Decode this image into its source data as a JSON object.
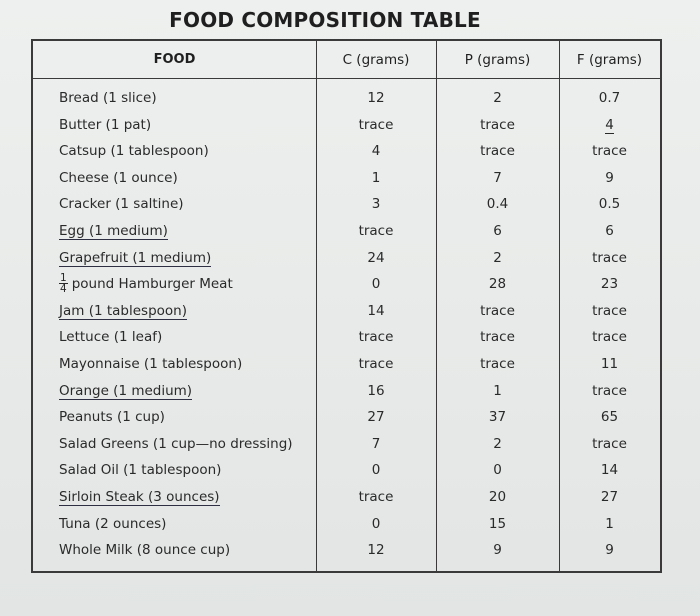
{
  "title": "FOOD COMPOSITION TABLE",
  "headers": {
    "food": "FOOD",
    "c": "C (grams)",
    "p": "P (grams)",
    "f": "F (grams)"
  },
  "rows": [
    {
      "food": "Bread (1 slice)",
      "c": "12",
      "p": "2",
      "f": "0.7",
      "underlined": false
    },
    {
      "food": "Butter (1 pat)",
      "c": "trace",
      "p": "trace",
      "f": "4",
      "underlined": false
    },
    {
      "food": "Catsup (1 tablespoon)",
      "c": "4",
      "p": "trace",
      "f": "trace",
      "underlined": false
    },
    {
      "food": "Cheese (1 ounce)",
      "c": "1",
      "p": "7",
      "f": "9",
      "underlined": false
    },
    {
      "food": "Cracker (1 saltine)",
      "c": "3",
      "p": "0.4",
      "f": "0.5",
      "underlined": false
    },
    {
      "food": "Egg (1 medium)",
      "c": "trace",
      "p": "6",
      "f": "6",
      "underlined": true
    },
    {
      "food": "Grapefruit (1 medium)",
      "c": "24",
      "p": "2",
      "f": "trace",
      "underlined": true
    },
    {
      "food": "pound Hamburger Meat",
      "frac_num": "1",
      "frac_den": "4",
      "c": "0",
      "p": "28",
      "f": "23",
      "underlined": false
    },
    {
      "food": "Jam (1 tablespoon)",
      "c": "14",
      "p": "trace",
      "f": "trace",
      "underlined": true
    },
    {
      "food": "Lettuce (1 leaf)",
      "c": "trace",
      "p": "trace",
      "f": "trace",
      "underlined": false
    },
    {
      "food": "Mayonnaise (1 tablespoon)",
      "c": "trace",
      "p": "trace",
      "f": "11",
      "underlined": false
    },
    {
      "food": "Orange (1 medium)",
      "c": "16",
      "p": "1",
      "f": "trace",
      "underlined": true
    },
    {
      "food": "Peanuts (1 cup)",
      "c": "27",
      "p": "37",
      "f": "65",
      "underlined": false
    },
    {
      "food": "Salad Greens (1 cup—no dressing)",
      "c": "7",
      "p": "2",
      "f": "trace",
      "underlined": false
    },
    {
      "food": "Salad Oil (1 tablespoon)",
      "c": "0",
      "p": "0",
      "f": "14",
      "underlined": false
    },
    {
      "food": "Sirloin Steak (3 ounces)",
      "c": "trace",
      "p": "20",
      "f": "27",
      "underlined": true
    },
    {
      "food": "Tuna (2 ounces)",
      "c": "0",
      "p": "15",
      "f": "1",
      "underlined": false
    },
    {
      "food": "Whole Milk (8 ounce cup)",
      "c": "12",
      "p": "9",
      "f": "9",
      "underlined": false
    }
  ]
}
